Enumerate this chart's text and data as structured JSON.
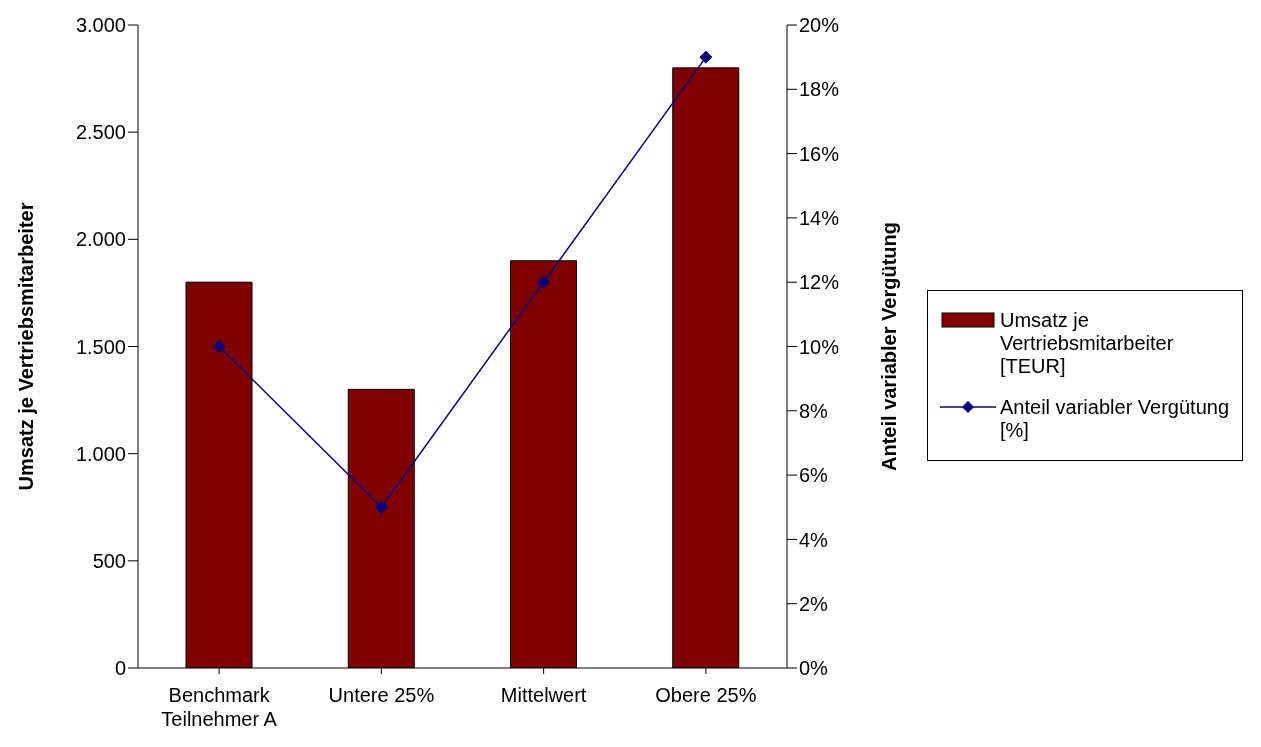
{
  "chart_data": {
    "type": "bar",
    "ylabel": "Umsatz je Vertriebsmitarbeiter",
    "y2label": "Anteil variabler Vergütung",
    "categories": [
      "Benchmark Teilnehmer A",
      "Untere 25%",
      "Mittelwert",
      "Obere 25%"
    ],
    "series": [
      {
        "name": "Umsatz je Vertriebsmitarbeiter [TEUR]",
        "color": "#800000",
        "values": [
          1800,
          1300,
          1900,
          2800
        ]
      },
      {
        "name": "Anteil variabler Vergütung [%]",
        "type": "line",
        "axis": "y2",
        "color": "#000080",
        "values": [
          10,
          5,
          12,
          19
        ]
      }
    ],
    "ylim": [
      0,
      3000
    ],
    "yticks": [
      {
        "value": 0,
        "label": "0"
      },
      {
        "value": 500,
        "label": "500"
      },
      {
        "value": 1000,
        "label": "1.000"
      },
      {
        "value": 1500,
        "label": "1.500"
      },
      {
        "value": 2000,
        "label": "2.000"
      },
      {
        "value": 2500,
        "label": "2.500"
      },
      {
        "value": 3000,
        "label": "3.000"
      }
    ],
    "y2lim": [
      0,
      20
    ],
    "y2ticks": [
      {
        "value": 0,
        "label": "0%"
      },
      {
        "value": 2,
        "label": "2%"
      },
      {
        "value": 4,
        "label": "4%"
      },
      {
        "value": 6,
        "label": "6%"
      },
      {
        "value": 8,
        "label": "8%"
      },
      {
        "value": 10,
        "label": "10%"
      },
      {
        "value": 12,
        "label": "12%"
      },
      {
        "value": 14,
        "label": "14%"
      },
      {
        "value": 16,
        "label": "16%"
      },
      {
        "value": 18,
        "label": "18%"
      },
      {
        "value": 20,
        "label": "20%"
      }
    ],
    "marker": "diamond",
    "legend": "right"
  }
}
